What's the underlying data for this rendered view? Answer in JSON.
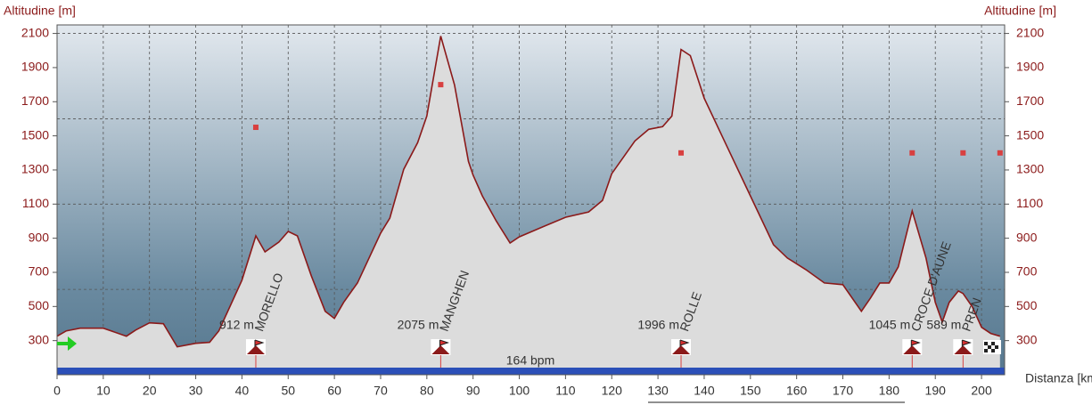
{
  "chart_data": {
    "type": "area",
    "y_label": "Altitudine [m]",
    "y2_label": "Altitudine [m]",
    "x_label": "Distanza [km]",
    "band_label": "164 bpm",
    "xlim": [
      0,
      205
    ],
    "ylim": [
      100,
      2150
    ],
    "xticks": [
      0,
      10,
      20,
      30,
      40,
      50,
      60,
      70,
      80,
      90,
      100,
      110,
      120,
      130,
      140,
      150,
      160,
      170,
      180,
      190,
      200
    ],
    "yticks": [
      300,
      500,
      700,
      900,
      1100,
      1300,
      1500,
      1700,
      1900,
      2100
    ],
    "ygrid": [
      600,
      1100,
      1600,
      2100
    ],
    "grid": true,
    "line_color": "#8b1a1a",
    "fill_color": "#dcdcdc",
    "x": [
      0,
      2,
      5,
      10,
      15,
      17,
      20,
      23,
      26,
      30,
      33,
      35,
      40,
      43,
      45,
      48,
      50,
      52,
      55,
      58,
      60,
      62,
      65,
      70,
      72,
      75,
      78,
      80,
      83,
      86,
      89,
      90,
      92,
      95,
      98,
      100,
      105,
      110,
      115,
      118,
      120,
      125,
      128,
      131,
      133,
      135,
      137,
      140,
      145,
      150,
      155,
      158,
      162,
      166,
      170,
      174,
      176,
      178,
      180,
      182,
      185,
      188,
      190,
      191.5,
      193,
      195,
      196,
      198,
      200,
      202,
      204
    ],
    "values": [
      326,
      357,
      373,
      373,
      326,
      362,
      404,
      399,
      264,
      284,
      290,
      357,
      654,
      914,
      820,
      878,
      940,
      914,
      680,
      472,
      430,
      524,
      638,
      930,
      1018,
      1304,
      1460,
      1616,
      2085,
      1798,
      1350,
      1270,
      1148,
      1002,
      872,
      908,
      966,
      1023,
      1054,
      1122,
      1278,
      1470,
      1538,
      1554,
      1616,
      2006,
      1970,
      1720,
      1434,
      1148,
      862,
      784,
      716,
      638,
      628,
      472,
      550,
      638,
      638,
      732,
      1060,
      784,
      524,
      409,
      524,
      591,
      576,
      498,
      378,
      342,
      326
    ],
    "markers": {
      "color": "#d84040",
      "x": [
        43,
        83,
        135,
        185,
        196,
        204
      ],
      "values": [
        1550,
        1800,
        1400,
        1400,
        1400,
        1400
      ]
    },
    "climbs": [
      {
        "x": 43,
        "label": "912 m",
        "name": "MORELLO"
      },
      {
        "x": 83,
        "label": "2075 m",
        "name": "MANGHEN"
      },
      {
        "x": 135,
        "label": "1996 m",
        "name": "ROLLE"
      },
      {
        "x": 185,
        "label": "1045 m",
        "name": "CROCE D'AUNE"
      },
      {
        "x": 196,
        "label": "589 m",
        "name": "PREN"
      }
    ]
  }
}
